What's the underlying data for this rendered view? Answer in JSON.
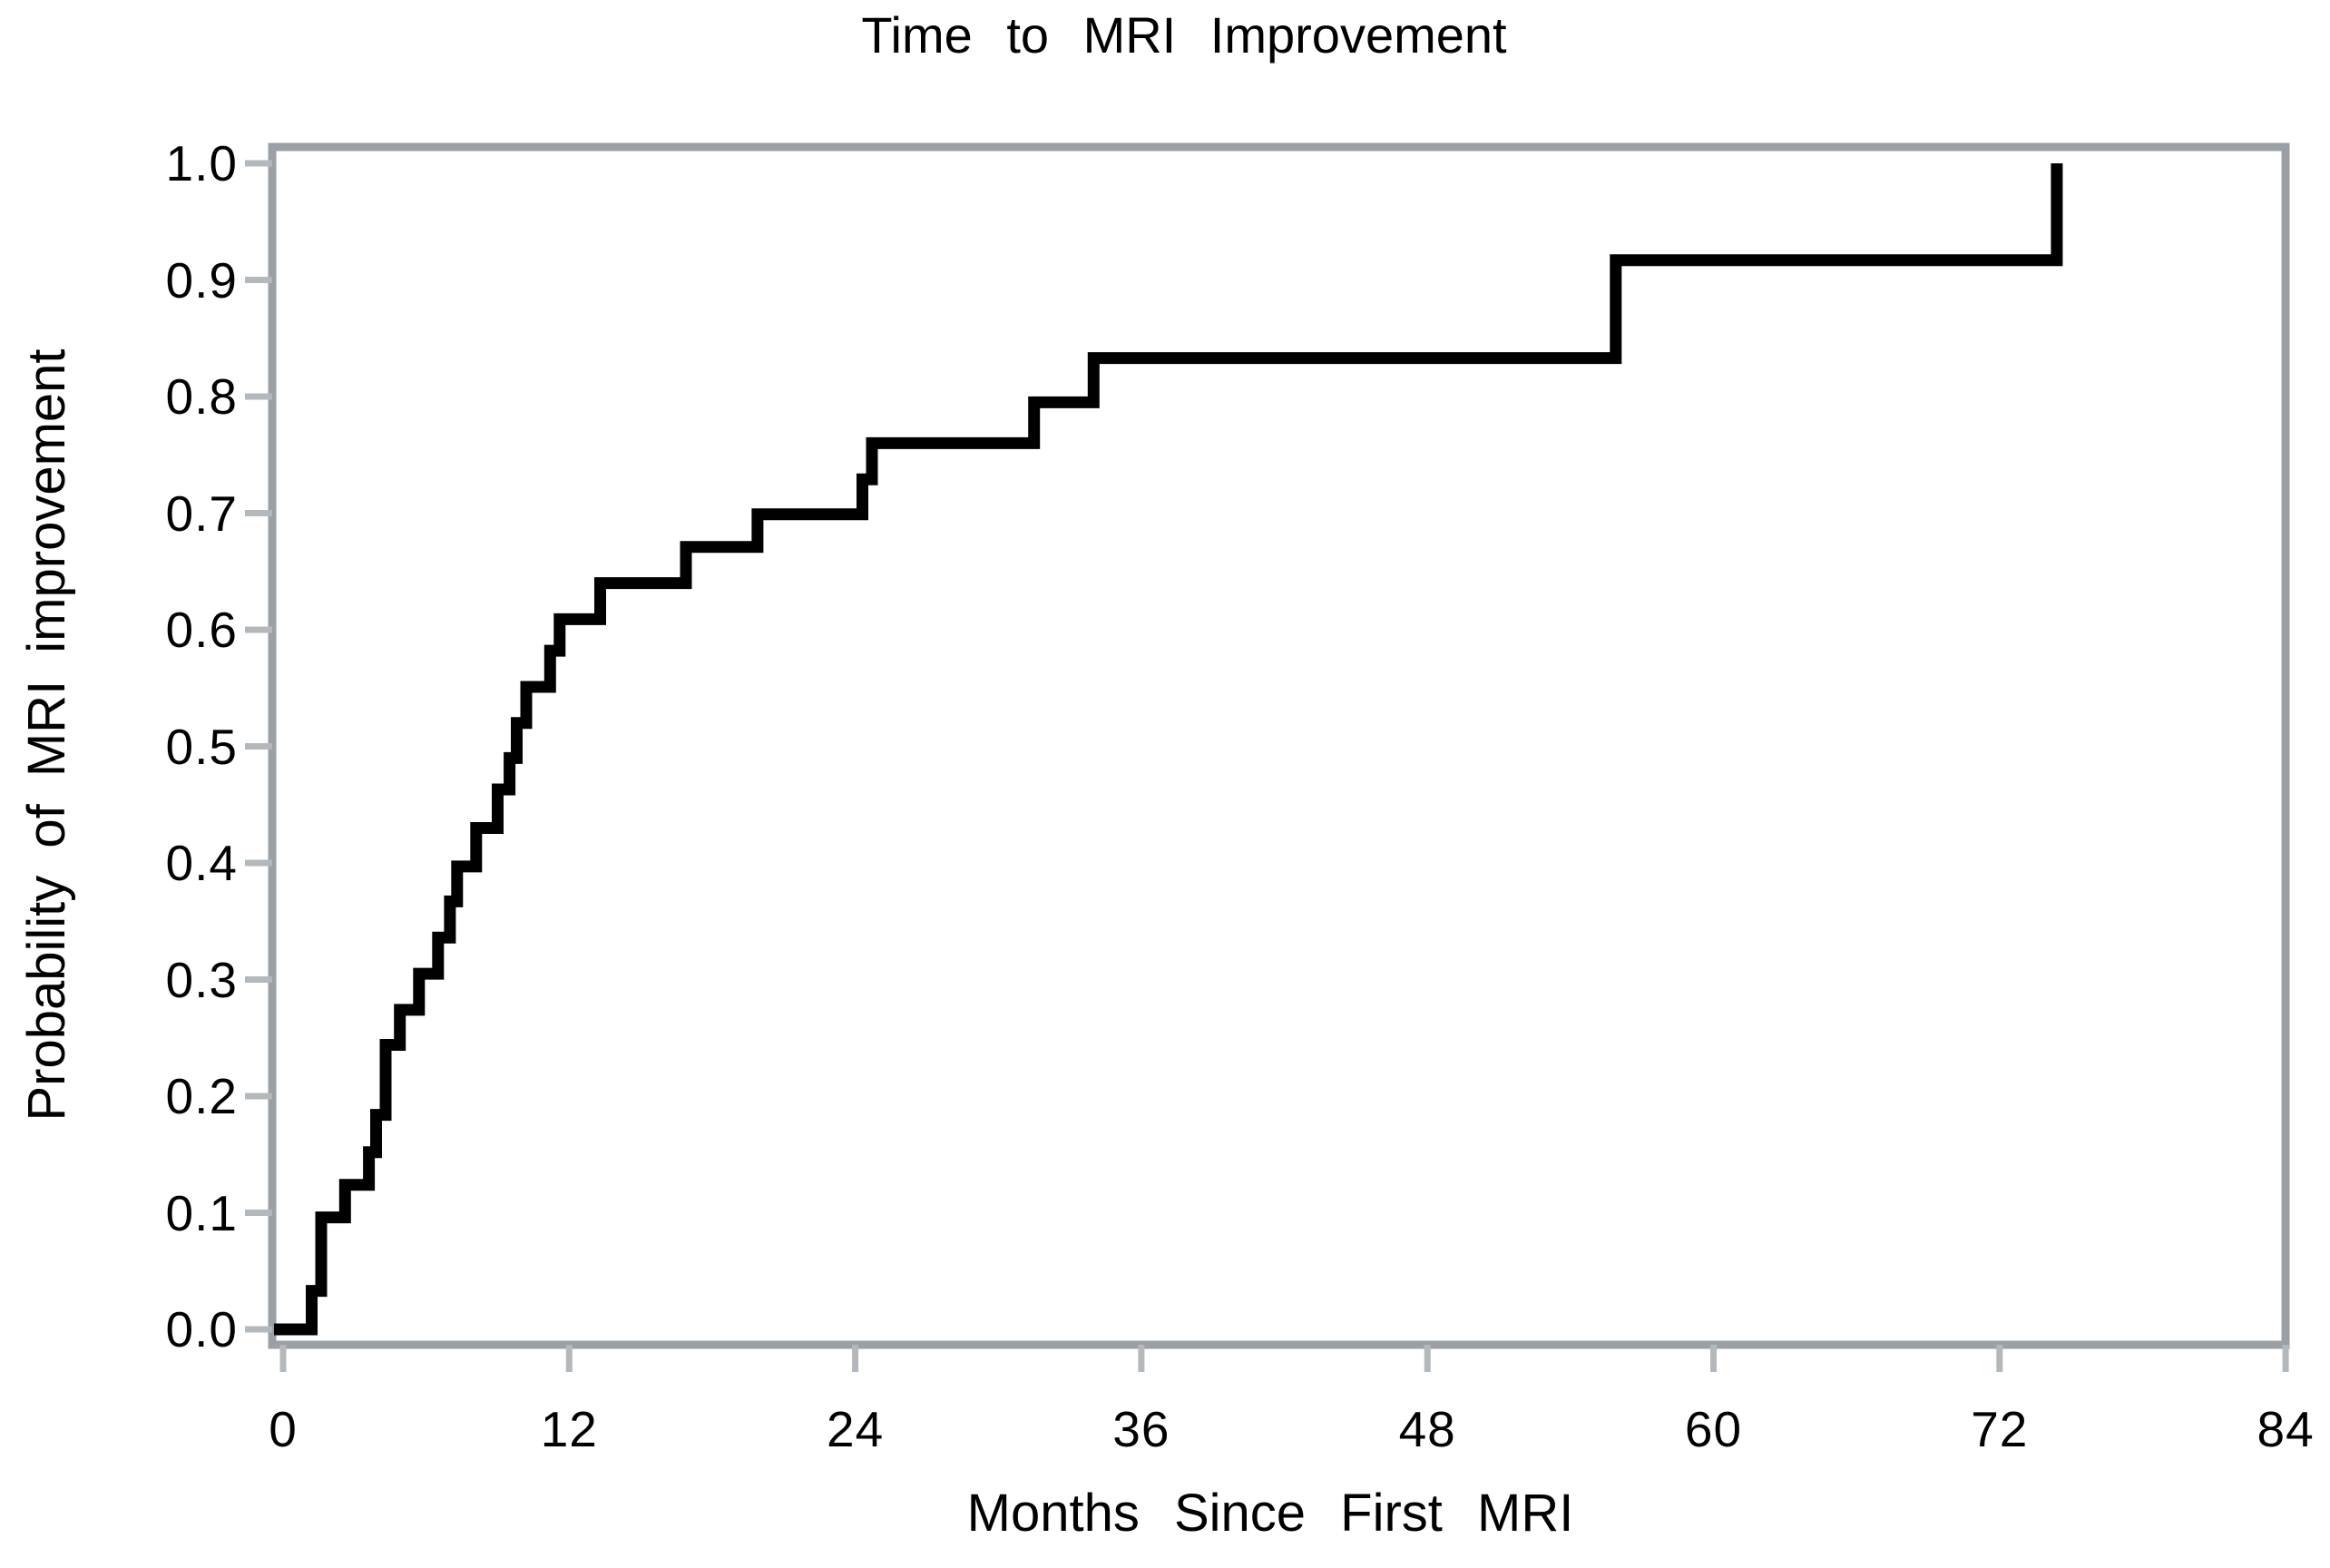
{
  "title": "Time to MRI Improvement",
  "chart_data": {
    "type": "line",
    "subtype": "step-post",
    "title": "Time to MRI Improvement",
    "xlabel": "Months Since First MRI",
    "ylabel": "Probability of MRI improvement",
    "xlim": [
      0,
      84
    ],
    "ylim": [
      0.0,
      1.0
    ],
    "x_ticks": [
      0,
      12,
      24,
      36,
      48,
      60,
      72,
      84
    ],
    "x_tick_labels": [
      "0",
      "12",
      "24",
      "36",
      "48",
      "60",
      "72",
      "84"
    ],
    "y_ticks": [
      0.0,
      0.1,
      0.2,
      0.3,
      0.4,
      0.5,
      0.6,
      0.7,
      0.8,
      0.9,
      1.0
    ],
    "y_tick_labels": [
      "0.0",
      "0.1",
      "0.2",
      "0.3",
      "0.4",
      "0.5",
      "0.6",
      "0.7",
      "0.8",
      "0.9",
      "1.0"
    ],
    "grid": false,
    "legend": null,
    "series": [
      {
        "name": "Probability of MRI improvement",
        "step": "post",
        "points": [
          [
            0.0,
            0.0
          ],
          [
            1.2,
            0.033
          ],
          [
            1.6,
            0.096
          ],
          [
            2.6,
            0.124
          ],
          [
            3.6,
            0.152
          ],
          [
            3.9,
            0.184
          ],
          [
            4.3,
            0.244
          ],
          [
            4.9,
            0.274
          ],
          [
            5.7,
            0.305
          ],
          [
            6.5,
            0.336
          ],
          [
            7.0,
            0.367
          ],
          [
            7.3,
            0.397
          ],
          [
            8.1,
            0.43
          ],
          [
            9.0,
            0.463
          ],
          [
            9.5,
            0.49
          ],
          [
            9.8,
            0.52
          ],
          [
            10.2,
            0.551
          ],
          [
            11.2,
            0.582
          ],
          [
            11.6,
            0.609
          ],
          [
            13.3,
            0.64
          ],
          [
            16.9,
            0.671
          ],
          [
            19.9,
            0.699
          ],
          [
            24.3,
            0.729
          ],
          [
            24.7,
            0.76
          ],
          [
            31.5,
            0.795
          ],
          [
            34.0,
            0.833
          ],
          [
            55.9,
            0.917
          ],
          [
            74.4,
            1.0
          ]
        ]
      }
    ],
    "colors": {
      "line": "#000000",
      "frame": "#9aa0a5",
      "tick": "#b2b8bc",
      "text": "#000000",
      "background": "#ffffff"
    }
  }
}
